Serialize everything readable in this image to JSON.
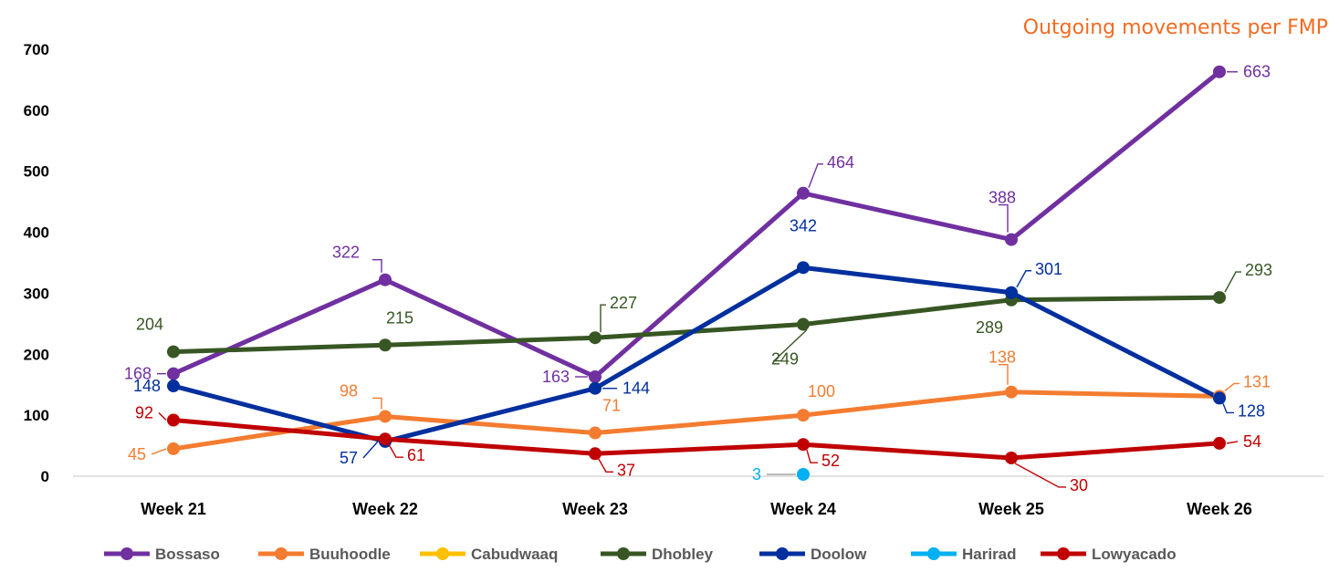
{
  "chart_data": {
    "type": "line",
    "title": "Outgoing movements per FMP",
    "categories": [
      "Week 21",
      "Week 22",
      "Week 23",
      "Week 24",
      "Week 25",
      "Week 26"
    ],
    "ylim": [
      0,
      700
    ],
    "yticks": [
      "0",
      "100",
      "200",
      "300",
      "400",
      "500",
      "600",
      "700"
    ],
    "grid": false,
    "legend_position": "bottom",
    "series": [
      {
        "name": "Bossaso",
        "color": "#7030A0",
        "values": [
          168,
          322,
          163,
          464,
          388,
          663
        ]
      },
      {
        "name": "Buuhoodle",
        "color": "#F47C30",
        "values": [
          45,
          98,
          71,
          100,
          138,
          131
        ]
      },
      {
        "name": "Cabudwaaq",
        "color": "#FFC000",
        "values": [
          null,
          null,
          null,
          null,
          null,
          null
        ]
      },
      {
        "name": "Dhobley",
        "color": "#375623",
        "values": [
          204,
          215,
          227,
          249,
          289,
          293
        ]
      },
      {
        "name": "Doolow",
        "color": "#002F9E",
        "values": [
          148,
          57,
          144,
          342,
          301,
          128
        ]
      },
      {
        "name": "Harirad",
        "color": "#00B0F0",
        "values": [
          null,
          null,
          null,
          3,
          null,
          null
        ]
      },
      {
        "name": "Lowyacado",
        "color": "#C00000",
        "values": [
          92,
          61,
          37,
          52,
          30,
          54
        ]
      }
    ]
  }
}
